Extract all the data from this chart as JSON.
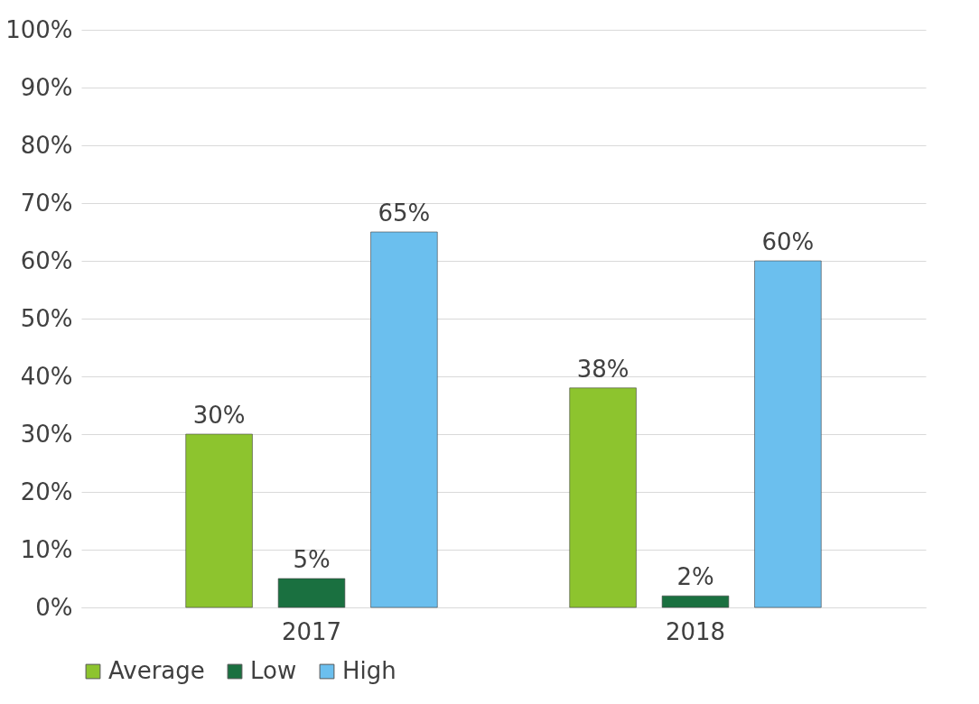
{
  "chart_data": {
    "type": "bar",
    "categories": [
      "2017",
      "2018"
    ],
    "series": [
      {
        "name": "Average",
        "color": "#8dc42e",
        "values": [
          30,
          38
        ],
        "value_labels": [
          "30%",
          "38%"
        ]
      },
      {
        "name": "Low",
        "color": "#1a7040",
        "values": [
          5,
          2
        ],
        "value_labels": [
          "5%",
          "2%"
        ]
      },
      {
        "name": "High",
        "color": "#6bbfee",
        "values": [
          65,
          60
        ],
        "value_labels": [
          "65%",
          "60%"
        ]
      }
    ],
    "ylim": [
      0,
      100
    ],
    "yticks": [
      {
        "value": 0,
        "label": "0%"
      },
      {
        "value": 10,
        "label": "10%"
      },
      {
        "value": 20,
        "label": "20%"
      },
      {
        "value": 30,
        "label": "30%"
      },
      {
        "value": 40,
        "label": "40%"
      },
      {
        "value": 50,
        "label": "50%"
      },
      {
        "value": 60,
        "label": "60%"
      },
      {
        "value": 70,
        "label": "70%"
      },
      {
        "value": 80,
        "label": "80%"
      },
      {
        "value": 90,
        "label": "90%"
      },
      {
        "value": 100,
        "label": "100%"
      }
    ],
    "grid": "y",
    "legend": "bottom"
  }
}
